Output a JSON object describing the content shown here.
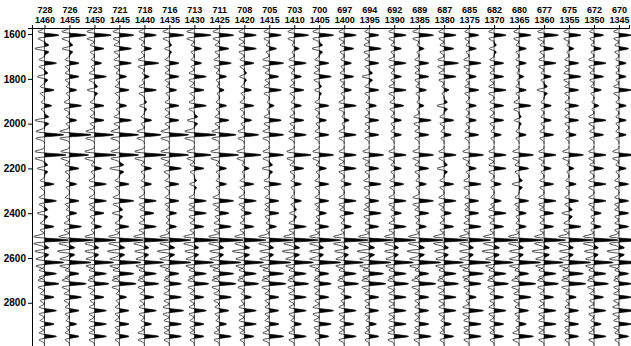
{
  "chart_data": {
    "type": "seismic_wiggle",
    "color": "#000000",
    "x": [
      1460,
      1455,
      1450,
      1445,
      1440,
      1435,
      1430,
      1425,
      1420,
      1415,
      1410,
      1405,
      1400,
      1395,
      1390,
      1385,
      1380,
      1375,
      1370,
      1365,
      1360,
      1355,
      1350,
      1345
    ],
    "xlim": [
      1462.5,
      1343
    ],
    "xticks": [
      1460,
      1455,
      1450,
      1445,
      1440,
      1435,
      1430,
      1425,
      1420,
      1415,
      1410,
      1405,
      1400,
      1395,
      1390,
      1385,
      1380,
      1375,
      1370,
      1365,
      1360,
      1355,
      1350,
      1345
    ],
    "cdp": [
      728,
      726,
      723,
      721,
      718,
      716,
      713,
      711,
      708,
      705,
      703,
      700,
      697,
      694,
      692,
      689,
      687,
      685,
      682,
      680,
      677,
      675,
      672,
      670
    ],
    "ylim": [
      1573,
      2993
    ],
    "yticks": [
      1600,
      1800,
      2000,
      2200,
      2400,
      2600,
      2800
    ],
    "horizons": [
      {
        "time": 1605,
        "amplitude": [
          6,
          7,
          7,
          6,
          5,
          6,
          7,
          6,
          5,
          5,
          6,
          6,
          5,
          4,
          5,
          6,
          5,
          4,
          5,
          5,
          6,
          5,
          4,
          5
        ]
      },
      {
        "time": 1665,
        "amplitude": [
          -4,
          -3,
          4,
          5,
          3,
          -2,
          3,
          4,
          5,
          3,
          2,
          -3,
          4,
          5,
          3,
          2,
          4,
          3,
          -2,
          3,
          4,
          2,
          3,
          4
        ]
      },
      {
        "time": 1730,
        "amplitude": [
          5,
          4,
          3,
          5,
          6,
          4,
          3,
          5,
          4,
          6,
          5,
          4,
          3,
          4,
          5,
          4,
          6,
          5,
          4,
          3,
          5,
          4,
          5,
          3
        ]
      },
      {
        "time": 1790,
        "amplitude": [
          -3,
          4,
          5,
          3,
          2,
          4,
          5,
          3,
          -2,
          4,
          3,
          5,
          4,
          -3,
          3,
          4,
          5,
          3,
          4,
          2,
          3,
          5,
          4,
          3
        ]
      },
      {
        "time": 1850,
        "amplitude": [
          4,
          3,
          -3,
          4,
          5,
          3,
          4,
          2,
          3,
          5,
          4,
          -2,
          3,
          4,
          5,
          3,
          2,
          4,
          5,
          3,
          -3,
          4,
          3,
          5
        ]
      },
      {
        "time": 1920,
        "amplitude": [
          3,
          5,
          4,
          3,
          -2,
          4,
          5,
          3,
          4,
          2,
          3,
          4,
          5,
          3,
          4,
          2,
          -3,
          3,
          4,
          5,
          3,
          4,
          2,
          3
        ]
      },
      {
        "time": 1985,
        "amplitude": [
          -4,
          3,
          4,
          5,
          3,
          4,
          -3,
          4,
          3,
          5,
          4,
          3,
          2,
          4,
          3,
          5,
          4,
          3,
          4,
          -2,
          3,
          4,
          5,
          3
        ]
      },
      {
        "time": 2050,
        "amplitude": [
          8,
          9,
          8,
          8,
          7,
          8,
          9,
          7,
          6,
          6,
          5,
          4,
          5,
          4,
          3,
          4,
          3,
          4,
          3,
          3,
          4,
          3,
          4,
          3
        ]
      },
      {
        "time": 2140,
        "amplitude": [
          9,
          8,
          9,
          8,
          9,
          8,
          7,
          8,
          7,
          6,
          7,
          6,
          5,
          6,
          5,
          6,
          5,
          6,
          5,
          6,
          5,
          6,
          5,
          6
        ]
      },
      {
        "time": 2200,
        "amplitude": [
          -3,
          4,
          3,
          -4,
          3,
          5,
          4,
          3,
          2,
          -3,
          4,
          3,
          5,
          4,
          3,
          4,
          -3,
          3,
          5,
          4,
          3,
          2,
          4,
          3
        ]
      },
      {
        "time": 2270,
        "amplitude": [
          4,
          3,
          5,
          4,
          3,
          4,
          -2,
          3,
          4,
          5,
          3,
          4,
          3,
          5,
          4,
          3,
          4,
          5,
          3,
          -3,
          4,
          3,
          5,
          4
        ]
      },
      {
        "time": 2345,
        "amplitude": [
          5,
          4,
          5,
          6,
          5,
          4,
          5,
          6,
          5,
          4,
          3,
          4,
          5,
          4,
          5,
          6,
          5,
          4,
          3,
          4,
          5,
          4,
          5,
          4
        ]
      },
      {
        "time": 2400,
        "amplitude": [
          -3,
          3,
          4,
          -3,
          4,
          3,
          5,
          4,
          3,
          4,
          -2,
          3,
          4,
          5,
          3,
          4,
          3,
          4,
          5,
          3,
          4,
          -3,
          3,
          4
        ]
      },
      {
        "time": 2460,
        "amplitude": [
          4,
          5,
          3,
          4,
          5,
          3,
          4,
          5,
          4,
          3,
          5,
          4,
          3,
          4,
          5,
          3,
          4,
          5,
          4,
          3,
          4,
          5,
          3,
          4
        ]
      },
      {
        "time": 2520,
        "amplitude": [
          10,
          10,
          9,
          10,
          10,
          9,
          10,
          10,
          9,
          10,
          10,
          9,
          10,
          10,
          9,
          10,
          10,
          9,
          10,
          10,
          9,
          10,
          10,
          9
        ]
      },
      {
        "time": 2570,
        "amplitude": [
          -4,
          -5,
          -4,
          -5,
          -4,
          -5,
          -4,
          -4,
          -5,
          -4,
          -5,
          -4,
          -4,
          -5,
          -4,
          -5,
          -4,
          -4,
          -5,
          -4,
          -5,
          -4,
          -4,
          -5
        ]
      },
      {
        "time": 2620,
        "amplitude": [
          8,
          9,
          8,
          9,
          8,
          9,
          8,
          9,
          8,
          9,
          8,
          9,
          8,
          9,
          8,
          9,
          8,
          9,
          8,
          9,
          8,
          9,
          8,
          9
        ]
      },
      {
        "time": 2670,
        "amplitude": [
          5,
          4,
          5,
          6,
          5,
          4,
          5,
          6,
          5,
          6,
          5,
          4,
          5,
          6,
          5,
          4,
          5,
          6,
          5,
          4,
          5,
          6,
          5,
          4
        ]
      },
      {
        "time": 2715,
        "amplitude": [
          6,
          7,
          6,
          7,
          6,
          5,
          6,
          7,
          6,
          7,
          6,
          5,
          6,
          7,
          6,
          7,
          6,
          5,
          6,
          7,
          6,
          7,
          6,
          5
        ]
      },
      {
        "time": 2775,
        "amplitude": [
          4,
          5,
          4,
          3,
          4,
          5,
          4,
          5,
          3,
          4,
          5,
          4,
          3,
          4,
          5,
          4,
          5,
          3,
          4,
          5,
          4,
          3,
          4,
          5
        ]
      },
      {
        "time": 2835,
        "amplitude": [
          5,
          4,
          5,
          4,
          5,
          6,
          5,
          4,
          5,
          4,
          5,
          6,
          5,
          4,
          5,
          4,
          5,
          6,
          5,
          4,
          5,
          4,
          5,
          6
        ]
      },
      {
        "time": 2895,
        "amplitude": [
          4,
          3,
          5,
          4,
          3,
          5,
          4,
          3,
          5,
          4,
          3,
          5,
          4,
          3,
          5,
          4,
          3,
          5,
          4,
          3,
          5,
          4,
          3,
          5
        ]
      },
      {
        "time": 2950,
        "amplitude": [
          5,
          4,
          5,
          4,
          6,
          5,
          4,
          5,
          4,
          6,
          5,
          4,
          5,
          4,
          6,
          5,
          4,
          5,
          4,
          6,
          5,
          4,
          5,
          4
        ]
      }
    ]
  }
}
